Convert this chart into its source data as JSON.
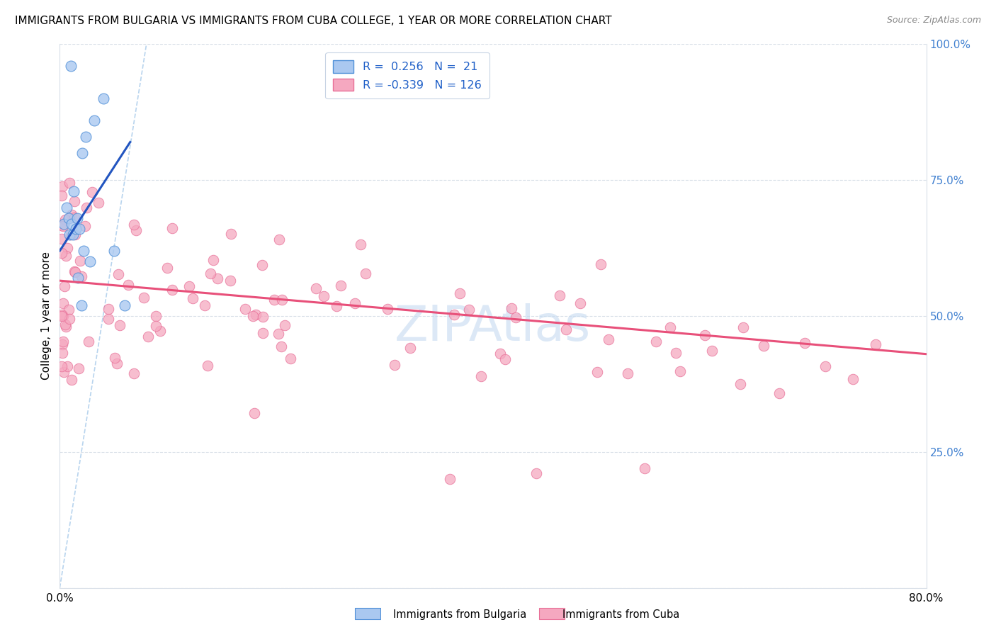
{
  "title": "IMMIGRANTS FROM BULGARIA VS IMMIGRANTS FROM CUBA COLLEGE, 1 YEAR OR MORE CORRELATION CHART",
  "source": "Source: ZipAtlas.com",
  "ylabel": "College, 1 year or more",
  "legend_r_bulgaria": " 0.256",
  "legend_n_bulgaria": " 21",
  "legend_r_cuba": "-0.339",
  "legend_n_cuba": "126",
  "bulgaria_color": "#aac8f0",
  "cuba_color": "#f5a8c0",
  "bulgaria_edge_color": "#5090d8",
  "cuba_edge_color": "#e87098",
  "bulgaria_line_color": "#2255c0",
  "cuba_line_color": "#e8507a",
  "diagonal_color": "#b8d4ee",
  "watermark_color": "#c5daf0",
  "grid_color": "#d8dfe8",
  "right_tick_color": "#4080d0",
  "xlim": [
    0,
    80
  ],
  "ylim": [
    0,
    100
  ],
  "right_yticks": [
    0,
    25,
    50,
    75,
    100
  ],
  "right_yticklabels": [
    "",
    "25.0%",
    "50.0%",
    "75.0%",
    "100.0%"
  ],
  "bg_trend_x": [
    0.0,
    6.5
  ],
  "bg_trend_y": [
    62.0,
    82.0
  ],
  "cu_trend_x": [
    0.0,
    80.0
  ],
  "cu_trend_y": [
    56.5,
    43.0
  ]
}
